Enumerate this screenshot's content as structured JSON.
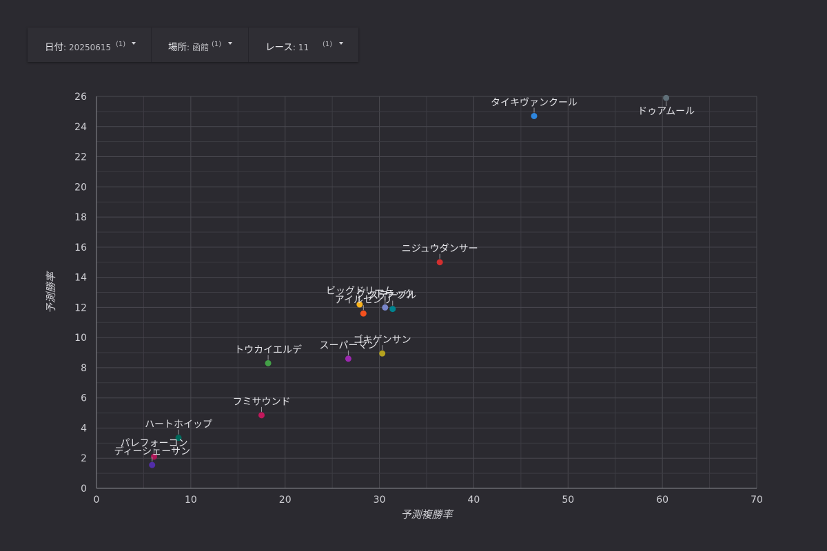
{
  "filters": [
    {
      "label": "日付",
      "value": "20250615",
      "count": "(1)"
    },
    {
      "label": "場所",
      "value": "函館",
      "count": "(1)"
    },
    {
      "label": "レース",
      "value": "11",
      "count": "(1)"
    }
  ],
  "chart_data": {
    "type": "scatter",
    "xlabel": "予測複勝率",
    "ylabel": "予測勝率",
    "xlim": [
      0,
      70
    ],
    "ylim": [
      0,
      26
    ],
    "x_ticks": [
      0,
      10,
      20,
      30,
      40,
      50,
      60,
      70
    ],
    "y_ticks": [
      0,
      2,
      4,
      6,
      8,
      10,
      12,
      14,
      16,
      18,
      20,
      22,
      24,
      26
    ],
    "grid": true,
    "points": [
      {
        "name": "ドゥアムール",
        "x": 60.4,
        "y": 25.9,
        "color": "#5f6f78"
      },
      {
        "name": "タイキヴァンクール",
        "x": 46.4,
        "y": 24.7,
        "color": "#2e86de"
      },
      {
        "name": "ニジュウダンサー",
        "x": 36.4,
        "y": 15.0,
        "color": "#d32f2f"
      },
      {
        "name": "ビッグドリーム",
        "x": 27.9,
        "y": 12.2,
        "color": "#f9b21c"
      },
      {
        "name": "グッドラック",
        "x": 30.6,
        "y": 12.0,
        "color": "#7986cb"
      },
      {
        "name": "ステーブル",
        "x": 31.4,
        "y": 11.9,
        "color": "#00838f"
      },
      {
        "name": "アイルセンリ",
        "x": 28.3,
        "y": 11.6,
        "color": "#f4511e"
      },
      {
        "name": "ゴキゲンサン",
        "x": 30.3,
        "y": 8.95,
        "color": "#b5a21f"
      },
      {
        "name": "スーパーマン",
        "x": 26.7,
        "y": 8.6,
        "color": "#9c27b0"
      },
      {
        "name": "トウカイエルデ",
        "x": 18.2,
        "y": 8.3,
        "color": "#43a047"
      },
      {
        "name": "フミサウンド",
        "x": 17.5,
        "y": 4.85,
        "color": "#c2185b"
      },
      {
        "name": "ハートホイップ",
        "x": 8.7,
        "y": 3.35,
        "color": "#00695c"
      },
      {
        "name": "パレフォーコン",
        "x": 6.1,
        "y": 2.1,
        "color": "#ad1457"
      },
      {
        "name": "ディーシェーサン",
        "x": 5.9,
        "y": 1.55,
        "color": "#512da8"
      }
    ]
  }
}
